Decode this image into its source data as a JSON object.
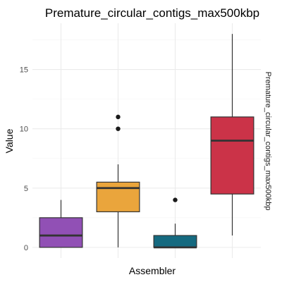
{
  "chart_data": {
    "type": "boxplot",
    "title": "Premature_circular_contigs_max500kbp",
    "xlabel": "Assembler",
    "ylabel": "Value",
    "facet_label": "Premature_circular_contigs_max500kbp",
    "ylim": [
      -0.9,
      18.9
    ],
    "y_ticks": [
      0,
      5,
      10,
      15
    ],
    "x_tick_labels_visible": false,
    "grid": true,
    "legend": "none",
    "boxes": [
      {
        "color": "#9150b5",
        "min": 0,
        "q1": 0,
        "median": 1,
        "q3": 2.5,
        "max": 4,
        "outliers": []
      },
      {
        "color": "#eaa53c",
        "min": 0,
        "q1": 3,
        "median": 5,
        "q3": 5.5,
        "max": 7,
        "outliers": [
          10,
          11
        ]
      },
      {
        "color": "#156a80",
        "min": 0,
        "q1": 0,
        "median": 0,
        "q3": 1,
        "max": 2,
        "outliers": [
          4
        ]
      },
      {
        "color": "#cb3348",
        "min": 1,
        "q1": 4.5,
        "median": 9,
        "q3": 11,
        "max": 18,
        "outliers": []
      }
    ]
  }
}
